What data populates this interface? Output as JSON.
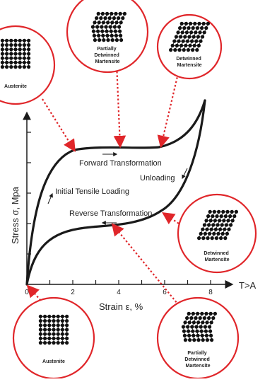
{
  "colors": {
    "accent": "#e0262a",
    "curve": "#1a1a1a",
    "lattice": "#111111"
  },
  "axes": {
    "xlabel": "Strain ε, %",
    "ylabel": "Stress σ, Mpa",
    "x_arrow_label": "T>A",
    "x_ticks": [
      "0",
      "2",
      "4",
      "6",
      "8"
    ]
  },
  "curve_labels": {
    "forward": "Forward Transformation",
    "unloading": "Unloading",
    "initial": "Initial Tensile Loading",
    "reverse": "Reverse Transformation"
  },
  "phases": {
    "austenite_top": {
      "label": [
        "Austenite"
      ]
    },
    "partial_top": {
      "label": [
        "Partially",
        "Detwinned",
        "Martensite"
      ]
    },
    "detwinned_top": {
      "label": [
        "Detwinned",
        "Martensite"
      ]
    },
    "detwinned_right": {
      "label": [
        "Detwinned",
        "Martensite"
      ]
    },
    "austenite_bottom": {
      "label": [
        "Austenite"
      ]
    },
    "partial_bottom": {
      "label": [
        "Partially",
        "Detwinned",
        "Martensite"
      ]
    }
  }
}
